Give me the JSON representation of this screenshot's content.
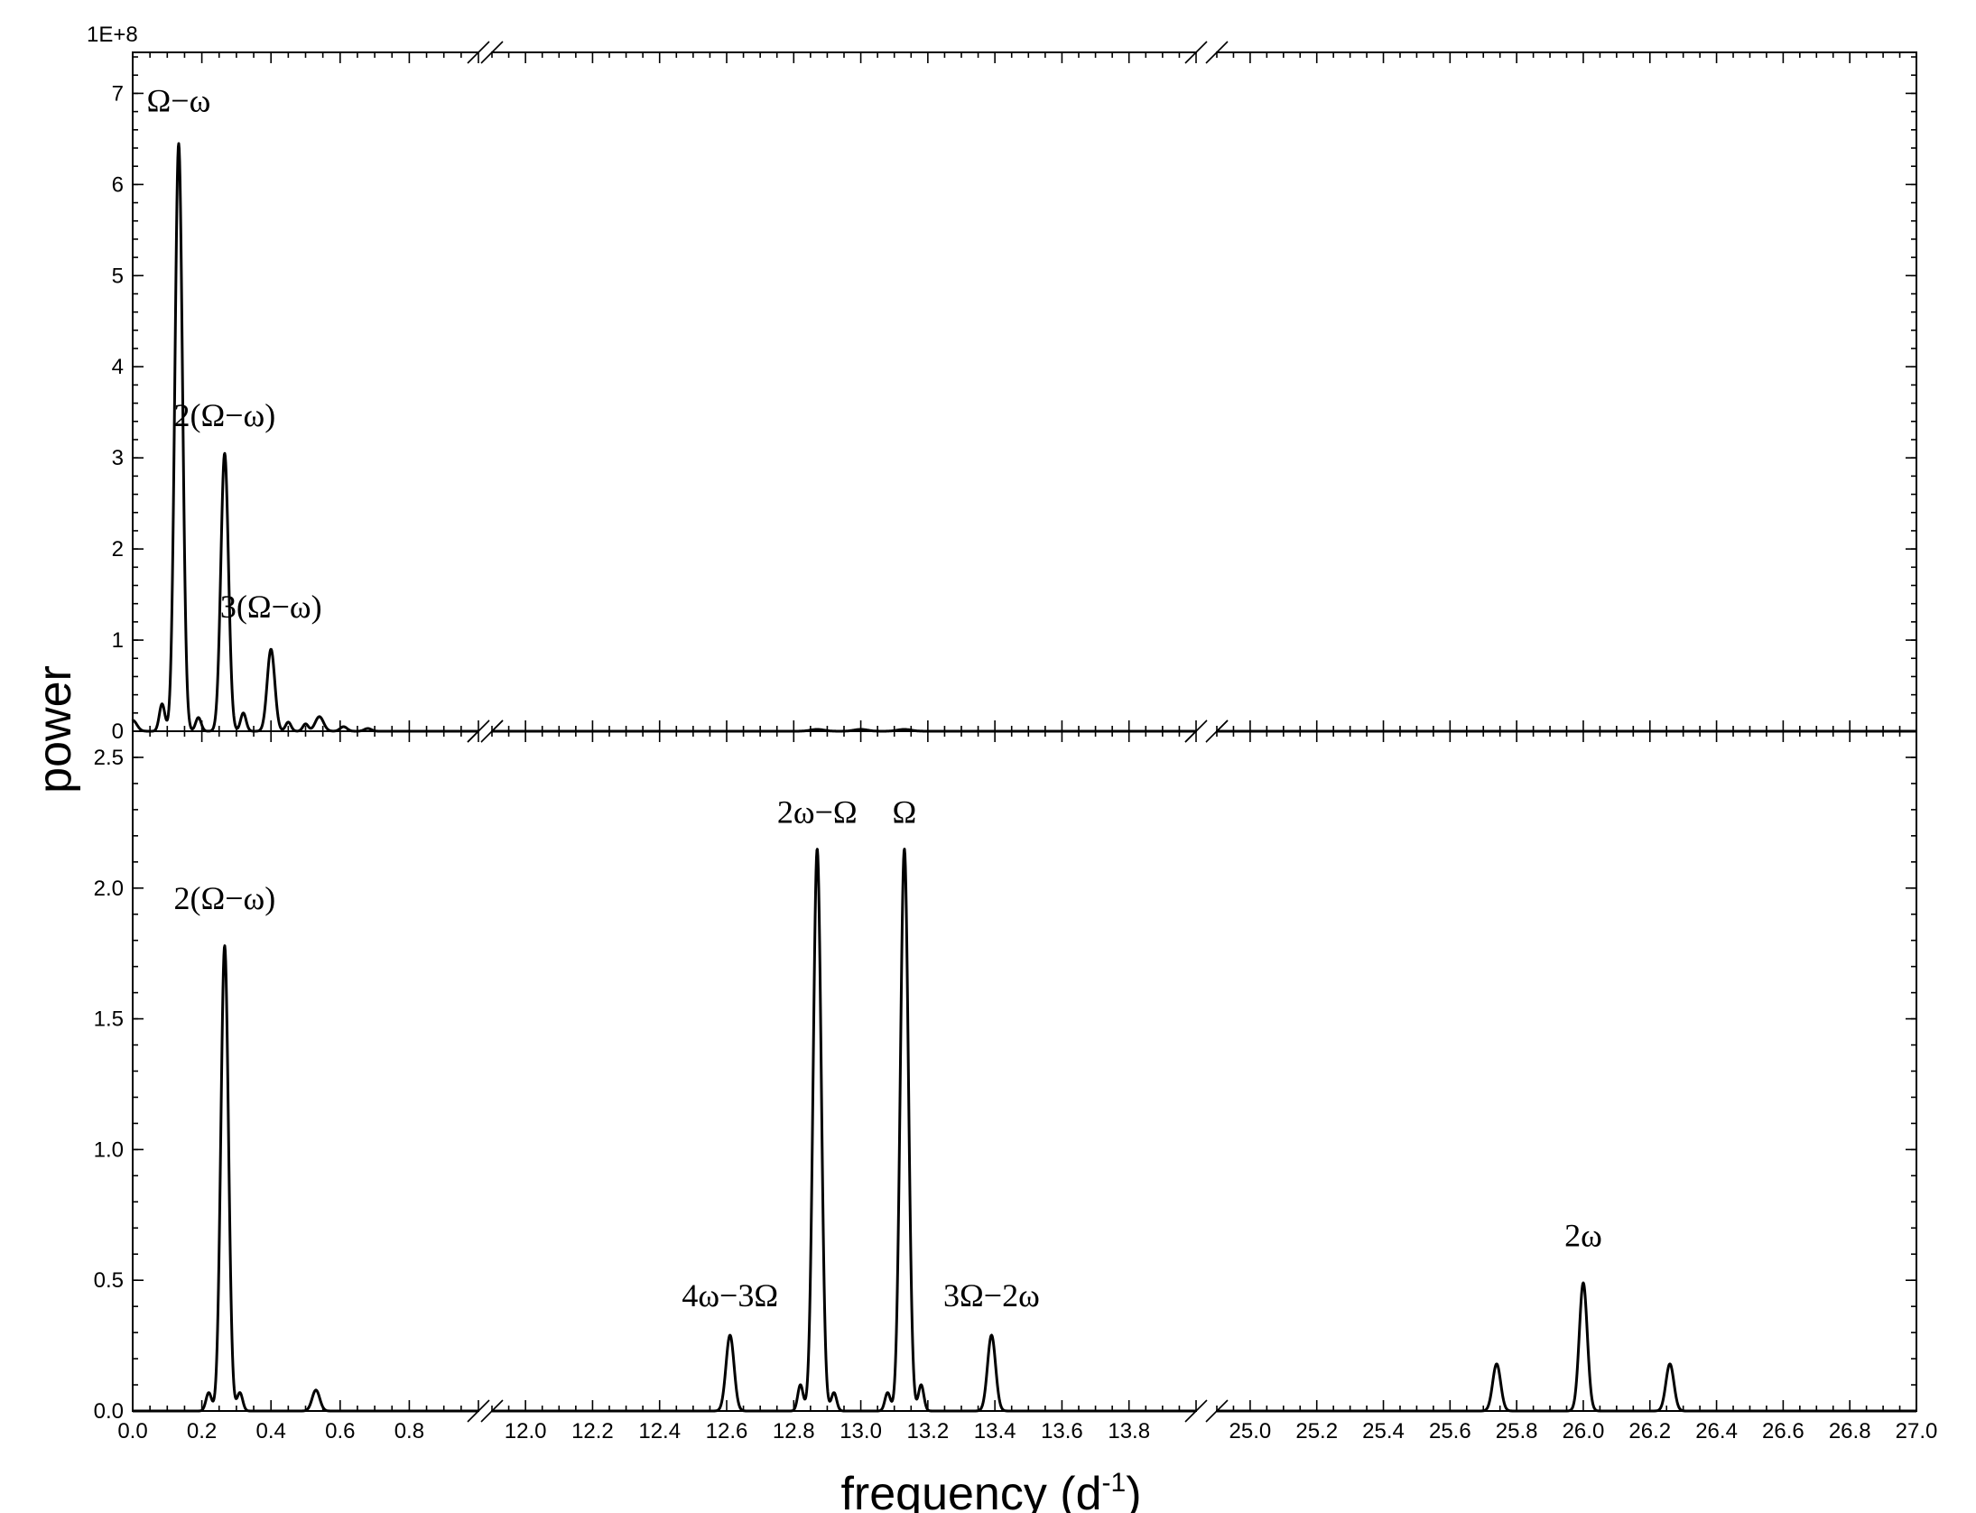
{
  "chart_data": {
    "type": "line",
    "xlabel": "frequency (d",
    "xlabel_sup": "-1",
    "xlabel_close": ")",
    "ylabel": "power",
    "x_breaks": [
      [
        1.0,
        11.9
      ],
      [
        14.0,
        24.9
      ]
    ],
    "x_segments": [
      {
        "range": [
          0.0,
          1.0
        ],
        "ticks": [
          "0.0",
          "0.2",
          "0.4",
          "0.6",
          "0.8"
        ]
      },
      {
        "range": [
          11.9,
          14.0
        ],
        "ticks": [
          "12.0",
          "12.2",
          "12.4",
          "12.6",
          "12.8",
          "13.0",
          "13.2",
          "13.4",
          "13.6",
          "13.8"
        ]
      },
      {
        "range": [
          24.9,
          27.0
        ],
        "ticks": [
          "25.0",
          "25.2",
          "25.4",
          "25.6",
          "25.8",
          "26.0",
          "26.2",
          "26.4",
          "26.6",
          "26.8",
          "27.0"
        ]
      }
    ],
    "panels": [
      {
        "name": "top",
        "multiplier_label": "1E+8",
        "ylim": [
          0,
          7.45
        ],
        "yticks": [
          "0",
          "1",
          "2",
          "3",
          "4",
          "5",
          "6",
          "7"
        ],
        "peaks": [
          {
            "x": 0.0,
            "y": 0.12,
            "w": 0.012
          },
          {
            "x": 0.085,
            "y": 0.3,
            "w": 0.008
          },
          {
            "x": 0.133,
            "y": 6.45,
            "w": 0.011
          },
          {
            "x": 0.19,
            "y": 0.15,
            "w": 0.008
          },
          {
            "x": 0.266,
            "y": 3.05,
            "w": 0.011
          },
          {
            "x": 0.32,
            "y": 0.2,
            "w": 0.008
          },
          {
            "x": 0.4,
            "y": 0.9,
            "w": 0.011
          },
          {
            "x": 0.45,
            "y": 0.1,
            "w": 0.008
          },
          {
            "x": 0.5,
            "y": 0.08,
            "w": 0.008
          },
          {
            "x": 0.54,
            "y": 0.16,
            "w": 0.012
          },
          {
            "x": 0.61,
            "y": 0.05,
            "w": 0.01
          },
          {
            "x": 0.68,
            "y": 0.03,
            "w": 0.01
          },
          {
            "x": 12.87,
            "y": 0.02,
            "w": 0.02
          },
          {
            "x": 13.0,
            "y": 0.02,
            "w": 0.02
          },
          {
            "x": 13.13,
            "y": 0.02,
            "w": 0.02
          }
        ],
        "annotations": [
          {
            "text": "Ω−ω",
            "x": 0.133,
            "y": 6.8
          },
          {
            "text": "2(Ω−ω)",
            "x": 0.266,
            "y": 3.35
          },
          {
            "text": "3(Ω−ω)",
            "x": 0.4,
            "y": 1.25
          }
        ]
      },
      {
        "name": "bottom",
        "ylim": [
          0,
          2.6
        ],
        "yticks": [
          "0.0",
          "0.5",
          "1.0",
          "1.5",
          "2.0",
          "2.5"
        ],
        "peaks": [
          {
            "x": 0.22,
            "y": 0.07,
            "w": 0.008
          },
          {
            "x": 0.266,
            "y": 1.78,
            "w": 0.011
          },
          {
            "x": 0.31,
            "y": 0.07,
            "w": 0.008
          },
          {
            "x": 0.53,
            "y": 0.08,
            "w": 0.011
          },
          {
            "x": 12.61,
            "y": 0.29,
            "w": 0.012
          },
          {
            "x": 12.82,
            "y": 0.1,
            "w": 0.008
          },
          {
            "x": 12.87,
            "y": 2.15,
            "w": 0.012
          },
          {
            "x": 12.92,
            "y": 0.07,
            "w": 0.008
          },
          {
            "x": 13.08,
            "y": 0.07,
            "w": 0.008
          },
          {
            "x": 13.13,
            "y": 2.15,
            "w": 0.012
          },
          {
            "x": 13.18,
            "y": 0.1,
            "w": 0.008
          },
          {
            "x": 13.39,
            "y": 0.29,
            "w": 0.012
          },
          {
            "x": 25.74,
            "y": 0.18,
            "w": 0.012
          },
          {
            "x": 26.0,
            "y": 0.49,
            "w": 0.012
          },
          {
            "x": 26.26,
            "y": 0.18,
            "w": 0.012
          }
        ],
        "annotations": [
          {
            "text": "2(Ω−ω)",
            "x": 0.266,
            "y": 1.92
          },
          {
            "text": "4ω−3Ω",
            "x": 12.61,
            "y": 0.4
          },
          {
            "text": "2ω−Ω",
            "x": 12.87,
            "y": 2.25
          },
          {
            "text": "Ω",
            "x": 13.13,
            "y": 2.25
          },
          {
            "text": "3Ω−2ω",
            "x": 13.39,
            "y": 0.4
          },
          {
            "text": "2ω",
            "x": 26.0,
            "y": 0.63
          }
        ]
      }
    ]
  }
}
